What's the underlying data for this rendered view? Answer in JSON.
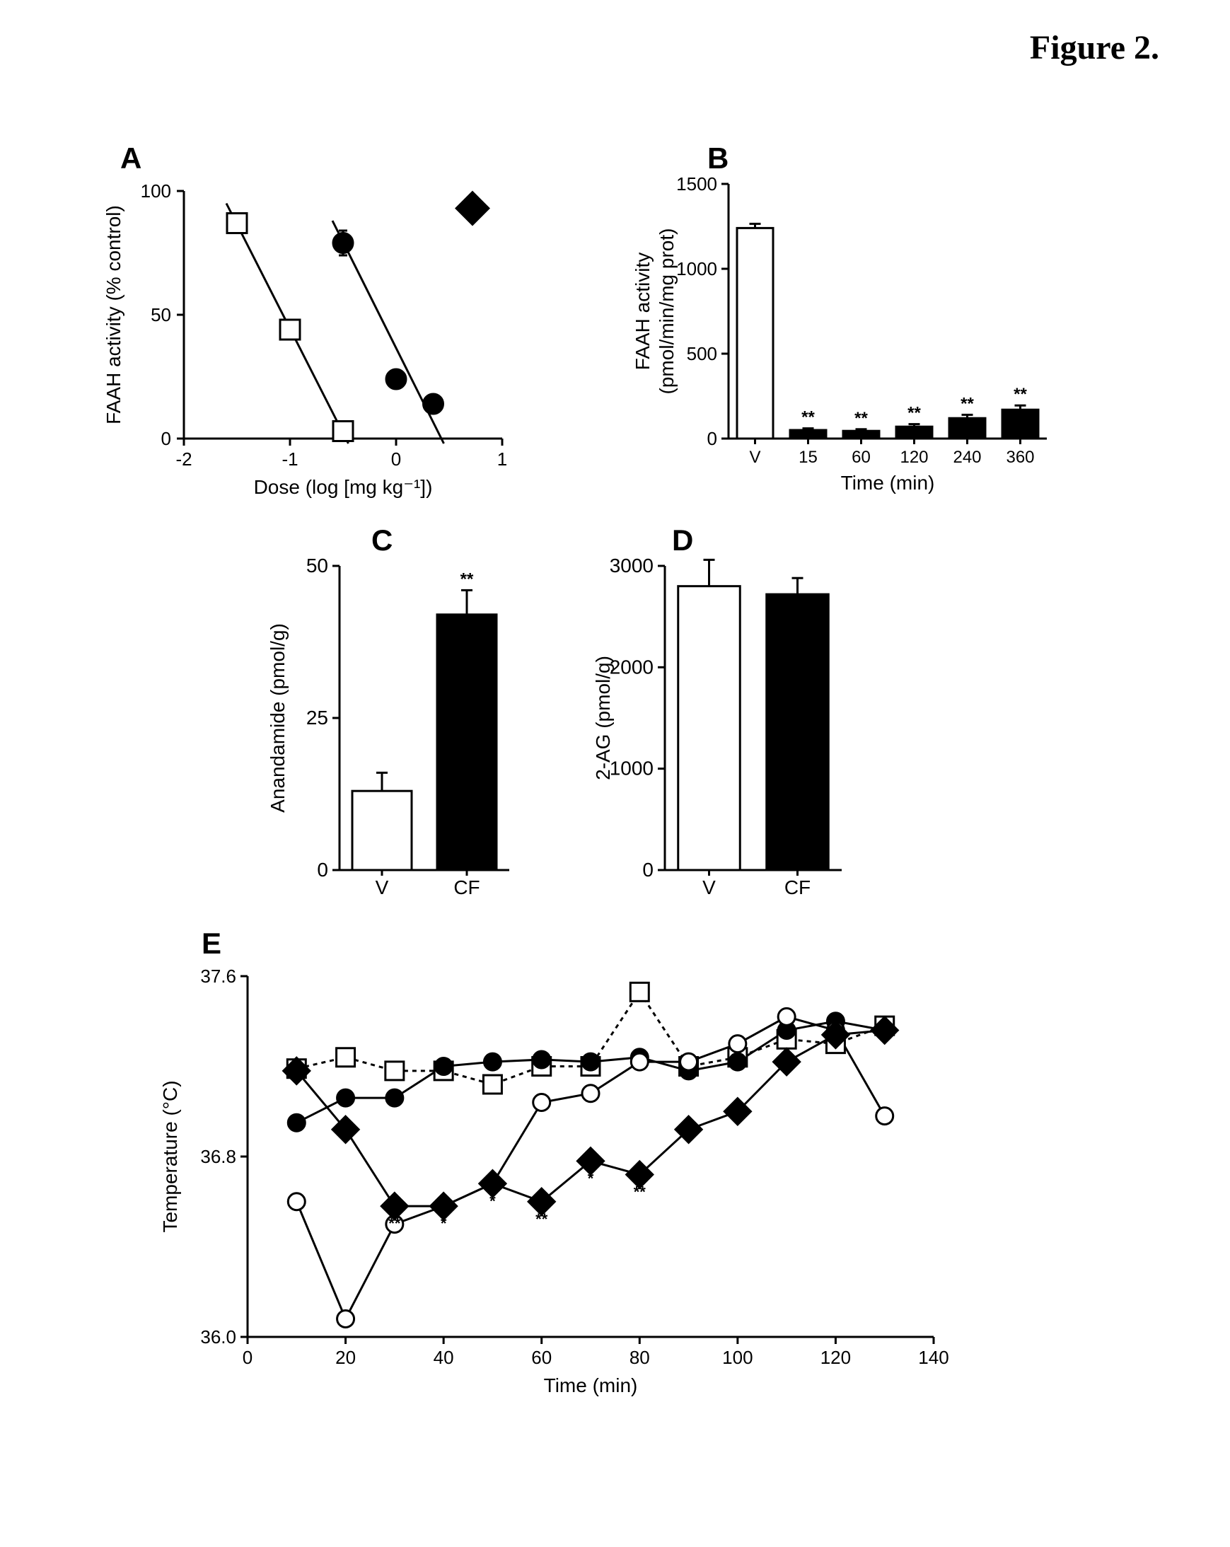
{
  "figure_title": "Figure 2.",
  "panelA": {
    "label": "A",
    "type": "scatter",
    "xlabel": "Dose (log [mg kg⁻¹])",
    "ylabel": "FAAH activity (% control)",
    "xlim": [
      -2,
      1
    ],
    "ylim": [
      0,
      100
    ],
    "xticks": [
      -2,
      -1,
      0,
      1
    ],
    "yticks": [
      0,
      50,
      100
    ],
    "axis_fontsize": 28,
    "tick_fontsize": 26,
    "series": [
      {
        "marker": "open-square",
        "size": 14,
        "color": "#000000",
        "fill": "#ffffff",
        "points": [
          {
            "x": -1.5,
            "y": 87
          },
          {
            "x": -1.0,
            "y": 44
          },
          {
            "x": -0.5,
            "y": 3
          }
        ],
        "regression": {
          "x1": -1.6,
          "y1": 95,
          "x2": -0.45,
          "y2": -2
        }
      },
      {
        "marker": "filled-circle",
        "size": 14,
        "color": "#000000",
        "fill": "#000000",
        "points": [
          {
            "x": -0.5,
            "y": 79,
            "err": 5
          },
          {
            "x": 0.0,
            "y": 24
          },
          {
            "x": 0.35,
            "y": 14
          }
        ],
        "regression": {
          "x1": -0.6,
          "y1": 88,
          "x2": 0.45,
          "y2": -2
        }
      },
      {
        "marker": "filled-diamond",
        "size": 16,
        "color": "#000000",
        "fill": "#000000",
        "points": [
          {
            "x": 0.72,
            "y": 93,
            "err": 3
          }
        ]
      }
    ]
  },
  "panelB": {
    "label": "B",
    "type": "bar",
    "xlabel": "Time (min)",
    "ylabel": "FAAH activity\n(pmol/min/mg prot)",
    "ylim": [
      0,
      1500
    ],
    "yticks": [
      0,
      500,
      1000,
      1500
    ],
    "categories": [
      "V",
      "15",
      "60",
      "120",
      "240",
      "360"
    ],
    "values": [
      1240,
      50,
      45,
      70,
      120,
      170
    ],
    "errors": [
      25,
      10,
      10,
      15,
      20,
      25
    ],
    "fills": [
      "#ffffff",
      "#000000",
      "#000000",
      "#000000",
      "#000000",
      "#000000"
    ],
    "annotations": [
      "",
      "**",
      "**",
      "**",
      "**",
      "**"
    ],
    "bar_width": 0.68,
    "axis_fontsize": 28,
    "tick_fontsize": 26,
    "stroke": "#000000"
  },
  "panelC": {
    "label": "C",
    "type": "bar",
    "ylabel": "Anandamide (pmol/g)",
    "ylim": [
      0,
      50
    ],
    "yticks": [
      0,
      25,
      50
    ],
    "categories": [
      "V",
      "CF"
    ],
    "values": [
      13,
      42
    ],
    "errors": [
      3,
      4
    ],
    "fills": [
      "#ffffff",
      "#000000"
    ],
    "annotations": [
      "",
      "**"
    ],
    "bar_width": 0.7,
    "axis_fontsize": 28,
    "tick_fontsize": 28,
    "stroke": "#000000"
  },
  "panelD": {
    "label": "D",
    "type": "bar",
    "ylabel": "2-AG (pmol/g)",
    "ylim": [
      0,
      3000
    ],
    "yticks": [
      0,
      1000,
      2000,
      3000
    ],
    "categories": [
      "V",
      "CF"
    ],
    "values": [
      2800,
      2720
    ],
    "errors": [
      260,
      160
    ],
    "fills": [
      "#ffffff",
      "#000000"
    ],
    "annotations": [
      "",
      ""
    ],
    "bar_width": 0.7,
    "axis_fontsize": 28,
    "tick_fontsize": 28,
    "stroke": "#000000"
  },
  "panelE": {
    "label": "E",
    "type": "line",
    "xlabel": "Time (min)",
    "ylabel": "Temperature (°C)",
    "xlim": [
      0,
      140
    ],
    "ylim": [
      36.0,
      37.6
    ],
    "xticks": [
      0,
      20,
      40,
      60,
      80,
      100,
      120,
      140
    ],
    "yticks": [
      36.0,
      36.8,
      37.6
    ],
    "axis_fontsize": 28,
    "tick_fontsize": 26,
    "series": [
      {
        "name": "open-square",
        "marker": "open-square",
        "dash": "6,6",
        "color": "#000000",
        "fill": "#ffffff",
        "size": 13,
        "points": [
          {
            "x": 10,
            "y": 37.19
          },
          {
            "x": 20,
            "y": 37.24
          },
          {
            "x": 30,
            "y": 37.18
          },
          {
            "x": 40,
            "y": 37.18
          },
          {
            "x": 50,
            "y": 37.12
          },
          {
            "x": 60,
            "y": 37.2
          },
          {
            "x": 70,
            "y": 37.2
          },
          {
            "x": 80,
            "y": 37.53
          },
          {
            "x": 90,
            "y": 37.2
          },
          {
            "x": 100,
            "y": 37.24
          },
          {
            "x": 110,
            "y": 37.32
          },
          {
            "x": 120,
            "y": 37.3
          },
          {
            "x": 130,
            "y": 37.38
          }
        ]
      },
      {
        "name": "filled-circle",
        "marker": "filled-circle",
        "dash": "",
        "color": "#000000",
        "fill": "#000000",
        "size": 12,
        "points": [
          {
            "x": 10,
            "y": 36.95
          },
          {
            "x": 20,
            "y": 37.06
          },
          {
            "x": 30,
            "y": 37.06
          },
          {
            "x": 40,
            "y": 37.2
          },
          {
            "x": 50,
            "y": 37.22
          },
          {
            "x": 60,
            "y": 37.23
          },
          {
            "x": 70,
            "y": 37.22
          },
          {
            "x": 80,
            "y": 37.24
          },
          {
            "x": 90,
            "y": 37.18
          },
          {
            "x": 100,
            "y": 37.22
          },
          {
            "x": 110,
            "y": 37.36
          },
          {
            "x": 120,
            "y": 37.4
          },
          {
            "x": 130,
            "y": 37.36
          }
        ]
      },
      {
        "name": "open-circle",
        "marker": "open-circle",
        "dash": "",
        "color": "#000000",
        "fill": "#ffffff",
        "size": 12,
        "points": [
          {
            "x": 10,
            "y": 36.6
          },
          {
            "x": 20,
            "y": 36.08
          },
          {
            "x": 30,
            "y": 36.5
          },
          {
            "x": 40,
            "y": 36.58,
            "sig": "*"
          },
          {
            "x": 50,
            "y": 36.68
          },
          {
            "x": 60,
            "y": 37.04
          },
          {
            "x": 70,
            "y": 37.08
          },
          {
            "x": 80,
            "y": 37.22
          },
          {
            "x": 90,
            "y": 37.22
          },
          {
            "x": 100,
            "y": 37.3
          },
          {
            "x": 110,
            "y": 37.42
          },
          {
            "x": 120,
            "y": 37.36
          },
          {
            "x": 130,
            "y": 36.98
          }
        ]
      },
      {
        "name": "filled-diamond",
        "marker": "filled-diamond",
        "dash": "",
        "color": "#000000",
        "fill": "#000000",
        "size": 13,
        "points": [
          {
            "x": 10,
            "y": 37.18
          },
          {
            "x": 20,
            "y": 36.92
          },
          {
            "x": 30,
            "y": 36.58,
            "sig": "**"
          },
          {
            "x": 40,
            "y": 36.58
          },
          {
            "x": 50,
            "y": 36.68,
            "sig": "*"
          },
          {
            "x": 60,
            "y": 36.6,
            "sig": "**"
          },
          {
            "x": 70,
            "y": 36.78,
            "sig": "*"
          },
          {
            "x": 80,
            "y": 36.72,
            "sig": "**"
          },
          {
            "x": 90,
            "y": 36.92
          },
          {
            "x": 100,
            "y": 37.0
          },
          {
            "x": 110,
            "y": 37.22
          },
          {
            "x": 120,
            "y": 37.34
          },
          {
            "x": 130,
            "y": 37.36
          }
        ]
      }
    ]
  }
}
